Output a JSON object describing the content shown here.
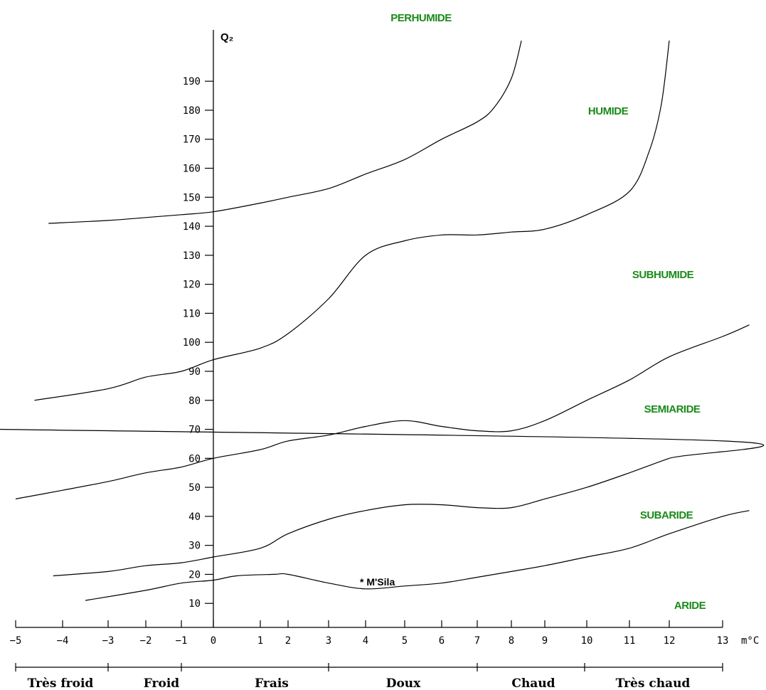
{
  "chart_data": {
    "type": "line",
    "title": "",
    "ylabel": "Q₂",
    "xlabel": "m°C",
    "xlim": [
      -5,
      13
    ],
    "ylim": [
      0,
      200
    ],
    "y_ticks": [
      10,
      20,
      30,
      40,
      50,
      60,
      70,
      80,
      90,
      100,
      110,
      120,
      130,
      140,
      150,
      160,
      170,
      180,
      190
    ],
    "x_ticks": [
      -5,
      -4,
      -3,
      -2,
      -1,
      0,
      1,
      2,
      3,
      4,
      5,
      6,
      7,
      8,
      9,
      10,
      11,
      12,
      13
    ],
    "grid": false,
    "boundaries": [
      {
        "name": "",
        "points": [
          [
            -3.5,
            11
          ],
          [
            -2,
            14.5
          ],
          [
            -1,
            17
          ],
          [
            0,
            18
          ],
          [
            0.5,
            19.5
          ],
          [
            1.5,
            20
          ],
          [
            2,
            20
          ],
          [
            3,
            17
          ],
          [
            4,
            15
          ],
          [
            5,
            16
          ],
          [
            6,
            17
          ],
          [
            7,
            19
          ],
          [
            8,
            21
          ],
          [
            9,
            23
          ],
          [
            10,
            26
          ],
          [
            11,
            29
          ],
          [
            12,
            34
          ],
          [
            13,
            40
          ],
          [
            13.5,
            42
          ]
        ]
      },
      {
        "name": "",
        "points": [
          [
            -4.2,
            19.5
          ],
          [
            -3,
            21
          ],
          [
            -2,
            23
          ],
          [
            -1,
            24
          ],
          [
            0,
            26
          ],
          [
            1,
            29
          ],
          [
            2,
            34
          ],
          [
            3,
            39
          ],
          [
            4,
            42
          ],
          [
            5,
            44
          ],
          [
            6,
            44
          ],
          [
            7,
            43
          ],
          [
            8,
            43
          ],
          [
            9,
            46
          ],
          [
            10,
            50
          ],
          [
            11,
            55
          ],
          [
            12,
            60
          ],
          [
            13,
            66
          ],
          [
            14,
            70
          ]
        ]
      },
      {
        "name": "",
        "points": [
          [
            -5,
            46
          ],
          [
            -4,
            49
          ],
          [
            -3,
            52
          ],
          [
            -2,
            55
          ],
          [
            -1,
            57
          ],
          [
            0,
            60
          ],
          [
            1,
            63
          ],
          [
            2,
            66
          ],
          [
            3,
            68
          ],
          [
            4,
            71
          ],
          [
            5,
            73
          ],
          [
            6,
            71
          ],
          [
            7,
            69.5
          ],
          [
            8,
            69.5
          ],
          [
            9,
            73
          ],
          [
            10,
            80
          ],
          [
            11,
            87
          ],
          [
            12,
            95
          ],
          [
            13,
            102
          ],
          [
            13.5,
            106
          ]
        ]
      },
      {
        "name": "",
        "points": [
          [
            -4.6,
            80
          ],
          [
            -3,
            84
          ],
          [
            -2,
            88
          ],
          [
            -1,
            90
          ],
          [
            0,
            94
          ],
          [
            1,
            98
          ],
          [
            2,
            103
          ],
          [
            3,
            115
          ],
          [
            4,
            130
          ],
          [
            5,
            135
          ],
          [
            6,
            137
          ],
          [
            7,
            137
          ],
          [
            8,
            138
          ],
          [
            9,
            139
          ],
          [
            10,
            144
          ],
          [
            11,
            152
          ],
          [
            11.5,
            166
          ],
          [
            11.8,
            182
          ],
          [
            12,
            204
          ]
        ]
      },
      {
        "name": "",
        "points": [
          [
            -4.3,
            141
          ],
          [
            -3,
            142
          ],
          [
            -2,
            143
          ],
          [
            -1,
            144
          ],
          [
            0,
            145
          ],
          [
            1,
            148
          ],
          [
            2,
            150
          ],
          [
            3,
            153
          ],
          [
            4,
            158
          ],
          [
            5,
            163
          ],
          [
            6,
            170
          ],
          [
            7,
            176
          ],
          [
            7.5,
            181
          ],
          [
            8,
            191
          ],
          [
            8.3,
            204
          ]
        ]
      }
    ],
    "zones": [
      "PERHUMIDE",
      "HUMIDE",
      "SUBHUMIDE",
      "SEMIARIDE",
      "SUBARIDE",
      "ARIDE"
    ],
    "temperature_bands": [
      "Très froid",
      "Froid",
      "Frais",
      "Doux",
      "Chaud",
      "Très chaud"
    ],
    "station": {
      "label": "* M'Sila",
      "m": 4,
      "q2": 15.5
    }
  }
}
